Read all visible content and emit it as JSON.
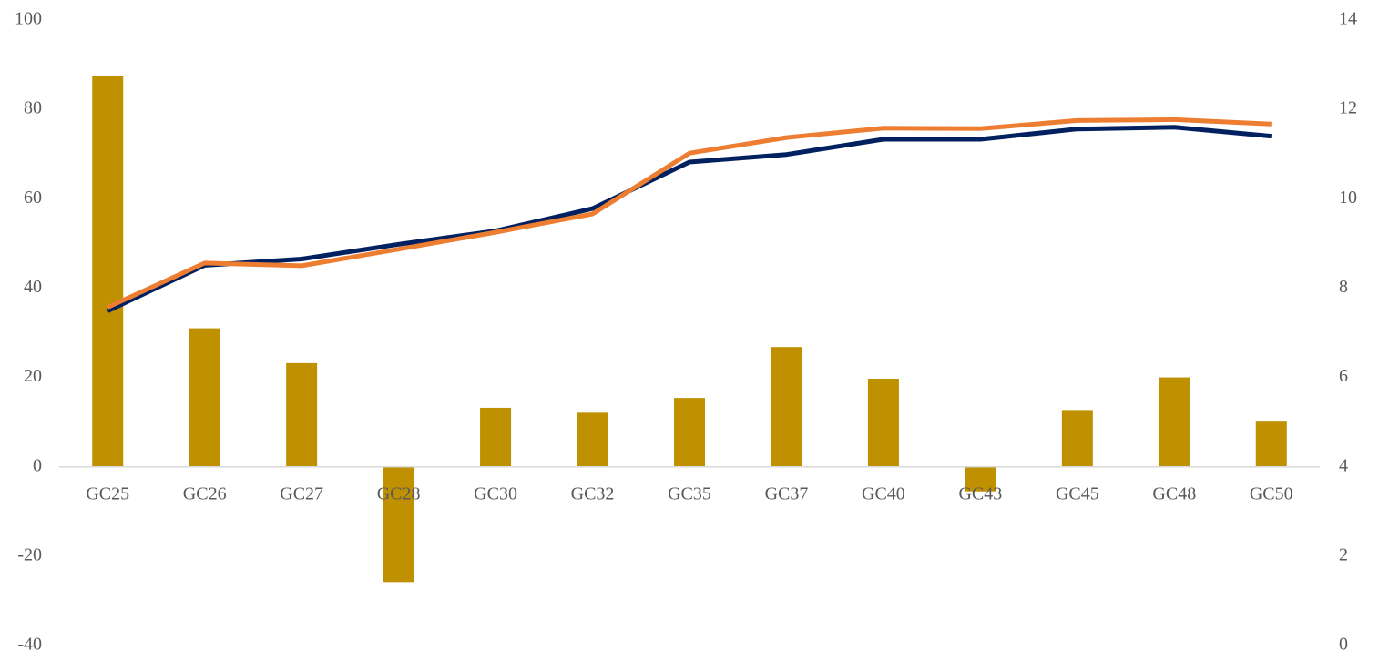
{
  "chart_data": {
    "type": "bar",
    "title": "",
    "xlabel": "",
    "ylabel": "",
    "y2label": "",
    "categories": [
      "GC25",
      "GC26",
      "GC27",
      "GC28",
      "GC30",
      "GC32",
      "GC35",
      "GC37",
      "GC40",
      "GC43",
      "GC45",
      "GC48",
      "GC50"
    ],
    "ylim": [
      -40,
      100
    ],
    "yticks": [
      -40,
      -20,
      0,
      20,
      40,
      60,
      80,
      100
    ],
    "y2lim": [
      0,
      14
    ],
    "y2ticks": [
      0,
      2,
      4,
      6,
      8,
      10,
      12,
      14
    ],
    "grid": false,
    "legend": "none",
    "series": [
      {
        "type": "bar",
        "axis": "left",
        "color": "#bf9000",
        "values": [
          87.5,
          31,
          23.2,
          -25.8,
          13.2,
          12.1,
          15.4,
          26.8,
          19.7,
          -5.5,
          12.7,
          20,
          10.3
        ]
      },
      {
        "type": "line",
        "axis": "right",
        "color": "#002060",
        "values": [
          7.49,
          8.51,
          8.65,
          8.98,
          9.28,
          9.78,
          10.82,
          10.99,
          11.33,
          11.33,
          11.56,
          11.6,
          11.4
        ]
      },
      {
        "type": "line",
        "axis": "right",
        "color": "#ed7d31",
        "values": [
          7.57,
          8.56,
          8.5,
          8.87,
          9.25,
          9.66,
          11.02,
          11.37,
          11.58,
          11.57,
          11.75,
          11.77,
          11.67
        ]
      }
    ]
  }
}
